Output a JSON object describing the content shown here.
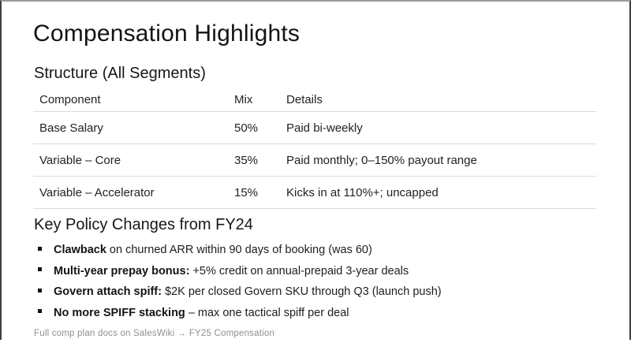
{
  "slide": {
    "title": "Compensation Highlights",
    "structure_heading": "Structure (All Segments)",
    "table": {
      "headers": [
        "Component",
        "Mix",
        "Details"
      ],
      "rows": [
        [
          "Base Salary",
          "50%",
          "Paid bi-weekly"
        ],
        [
          "Variable – Core",
          "35%",
          "Paid monthly; 0–150% payout range"
        ],
        [
          "Variable – Accelerator",
          "15%",
          "Kicks in at 110%+; uncapped"
        ]
      ]
    },
    "policy_heading": "Key Policy Changes from FY24",
    "bullets": [
      {
        "bold": "Clawback",
        "rest": " on churned ARR within 90 days of booking (was 60)"
      },
      {
        "bold": "Multi-year prepay bonus:",
        "rest": " +5% credit on annual-prepaid 3-year deals"
      },
      {
        "bold": "Govern attach spiff:",
        "rest": " $2K per closed Govern SKU through Q3 (launch push)"
      },
      {
        "bold": "No more SPIFF stacking",
        "rest": " – max one tactical spiff per deal"
      }
    ],
    "footer": "Full comp plan docs on SalesWiki → FY25 Compensation"
  },
  "colors": {
    "text": "#1b1b1b",
    "table_line": "#dbdbdb",
    "footer_text": "#8f8f8f",
    "frame_top": "#9b9b9b",
    "frame_sides": "#3e3e3e",
    "background": "#ffffff"
  }
}
